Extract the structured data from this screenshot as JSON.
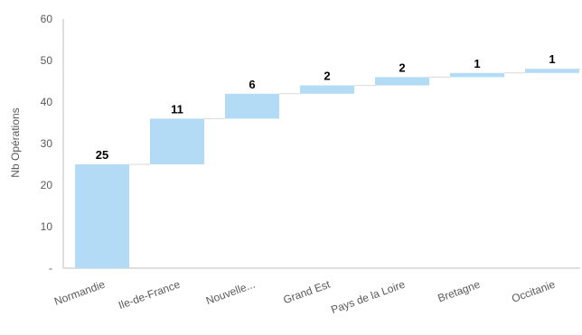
{
  "chart_data": {
    "type": "bar",
    "subtype": "waterfall",
    "ylabel": "Nb Opérations",
    "ylim": [
      0,
      60
    ],
    "yticks": [
      {
        "value": 0,
        "label": "-"
      },
      {
        "value": 10,
        "label": "10"
      },
      {
        "value": 20,
        "label": "20"
      },
      {
        "value": 30,
        "label": "30"
      },
      {
        "value": 40,
        "label": "40"
      },
      {
        "value": 50,
        "label": "50"
      },
      {
        "value": 60,
        "label": "60"
      }
    ],
    "grid": false,
    "categories": [
      "Normandie",
      "Ile-de-France",
      "Nouvelle...",
      "Grand Est",
      "Pays de la Loire",
      "Bretagne",
      "Occitanie"
    ],
    "values": [
      25,
      11,
      6,
      2,
      2,
      1,
      1
    ],
    "data_labels": [
      "25",
      "11",
      "6",
      "2",
      "2",
      "1",
      "1"
    ],
    "bar_color": "#b4dbf6",
    "connector_color": "#d9d9d9",
    "axis_color": "#bfbfbf"
  }
}
